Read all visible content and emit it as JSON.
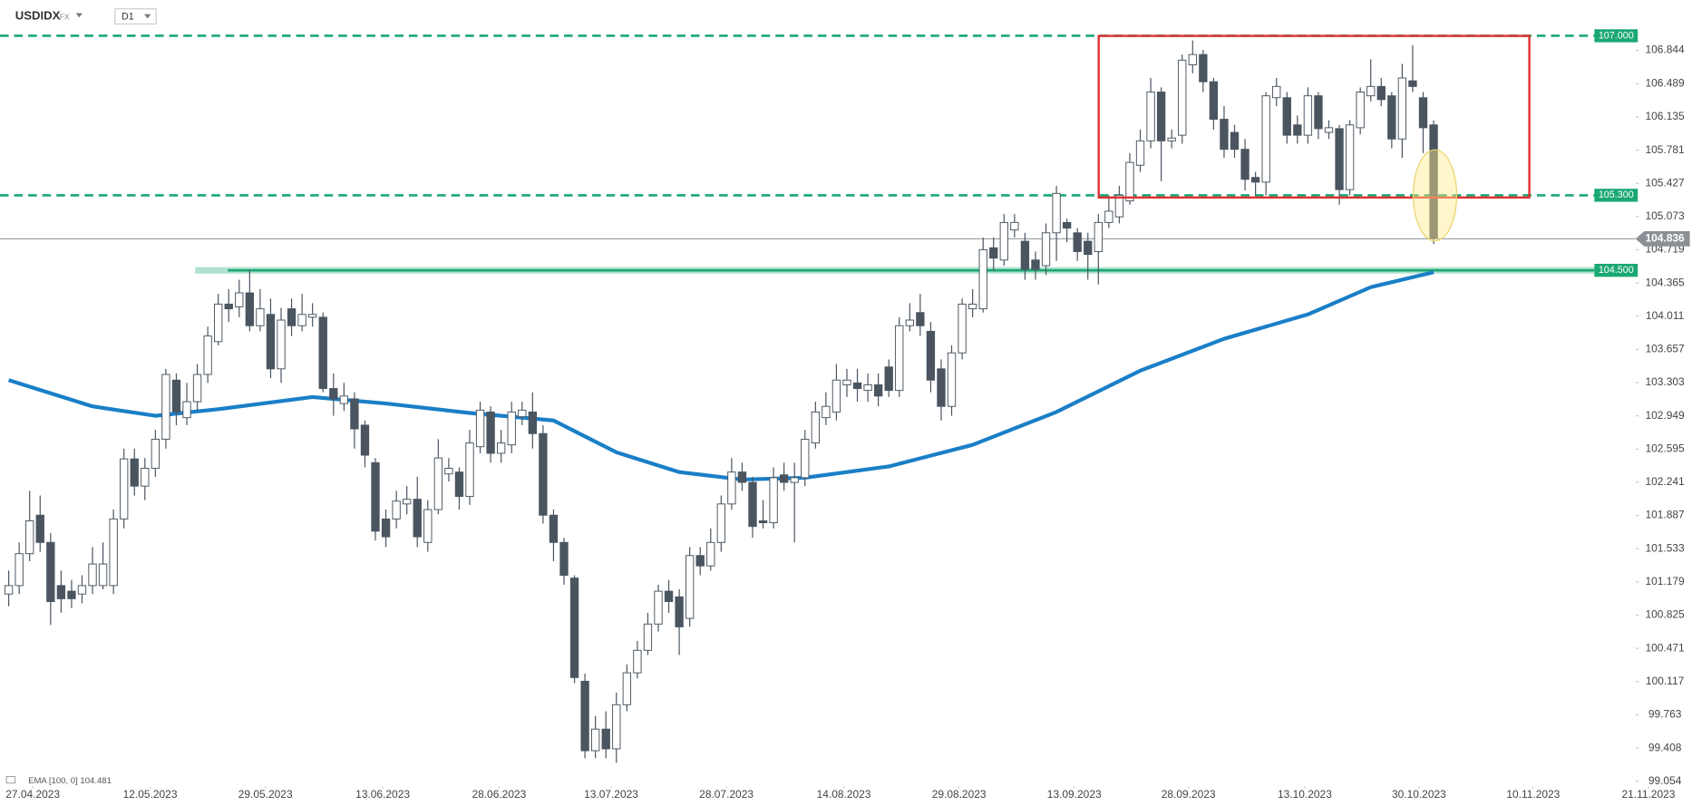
{
  "header": {
    "symbol": "USDIDX",
    "market": "FX",
    "interval": "D1"
  },
  "chart_data": {
    "type": "candlestick",
    "up_color": "#ffffff",
    "down_color": "#4a5560",
    "wick_color": "#4a5560",
    "open": [
      101.05,
      101.14,
      101.48,
      101.89,
      101.6,
      101.14,
      101.08,
      101.05,
      101.14,
      101.14,
      101.14,
      101.85,
      102.49,
      102.2,
      102.39,
      102.7,
      103.33,
      102.93,
      103.1,
      103.39,
      103.74,
      104.14,
      104.11,
      104.26,
      103.91,
      104.03,
      103.45,
      104.09,
      103.91,
      104.0,
      104.0,
      103.24,
      103.08,
      103.13,
      102.85,
      102.45,
      101.85,
      101.85,
      102.01,
      102.06,
      101.6,
      101.95,
      102.33,
      102.35,
      102.09,
      102.62,
      102.99,
      102.55,
      102.64,
      102.94,
      102.99,
      102.76,
      101.89,
      101.6,
      101.22,
      100.12,
      99.38,
      99.61,
      99.4,
      99.87,
      100.21,
      100.45,
      100.73,
      101.08,
      101.02,
      100.79,
      101.46,
      101.35,
      101.6,
      102.01,
      102.35,
      102.24,
      101.83,
      101.81,
      102.32,
      102.24,
      102.29,
      102.66,
      102.93,
      102.99,
      103.28,
      103.3,
      103.22,
      103.28,
      103.47,
      103.22,
      103.91,
      104.05,
      103.85,
      103.45,
      103.05,
      103.62,
      104.09,
      104.09,
      104.74,
      104.61,
      104.93,
      104.81,
      104.61,
      104.55,
      104.9,
      105.01,
      104.9,
      104.81,
      104.7,
      105.01,
      105.07,
      105.24,
      105.62,
      105.88,
      106.4,
      105.88,
      105.94,
      106.69,
      106.8,
      106.51,
      106.11,
      105.97,
      105.79,
      105.49,
      105.44,
      106.34,
      106.34,
      106.05,
      105.94,
      106.36,
      105.97,
      106.01,
      105.36,
      106.02,
      106.36,
      106.46,
      106.36,
      105.9,
      106.52,
      106.34,
      106.05
    ],
    "high": [
      101.3,
      101.6,
      102.15,
      102.1,
      101.7,
      101.3,
      101.2,
      101.25,
      101.55,
      101.6,
      101.95,
      102.6,
      102.6,
      102.5,
      102.8,
      103.45,
      103.4,
      103.3,
      103.5,
      103.9,
      104.25,
      104.3,
      104.4,
      104.5,
      104.3,
      104.2,
      104.1,
      104.2,
      104.25,
      104.15,
      104.05,
      103.4,
      103.3,
      103.2,
      102.9,
      102.5,
      101.95,
      102.15,
      102.2,
      102.3,
      102.05,
      102.7,
      102.5,
      102.4,
      102.8,
      103.1,
      103.05,
      102.8,
      103.1,
      103.1,
      103.2,
      102.85,
      101.95,
      101.65,
      101.25,
      100.2,
      99.75,
      99.8,
      100.0,
      100.3,
      100.55,
      100.85,
      101.15,
      101.2,
      101.1,
      101.55,
      101.55,
      101.75,
      102.1,
      102.5,
      102.45,
      102.3,
      102.05,
      102.4,
      102.45,
      102.45,
      102.8,
      103.1,
      103.2,
      103.5,
      103.45,
      103.45,
      103.4,
      103.4,
      103.55,
      104.0,
      104.15,
      104.25,
      103.95,
      103.55,
      103.7,
      104.2,
      104.3,
      104.85,
      104.85,
      105.1,
      105.1,
      104.9,
      104.7,
      105.0,
      105.4,
      105.05,
      104.95,
      104.9,
      105.1,
      105.3,
      105.4,
      105.75,
      106.0,
      106.55,
      106.45,
      106.0,
      106.8,
      106.95,
      106.85,
      106.55,
      106.25,
      106.05,
      105.9,
      105.55,
      106.4,
      106.55,
      106.4,
      106.15,
      106.45,
      106.4,
      106.1,
      106.05,
      106.1,
      106.45,
      106.75,
      106.55,
      106.4,
      106.7,
      106.9,
      106.4,
      106.1
    ],
    "low": [
      100.92,
      101.05,
      101.4,
      101.5,
      100.72,
      100.85,
      100.9,
      100.95,
      101.05,
      101.1,
      101.05,
      101.75,
      102.1,
      102.05,
      102.3,
      102.6,
      102.85,
      102.85,
      103.0,
      103.3,
      103.7,
      103.95,
      104.0,
      103.85,
      103.85,
      103.35,
      103.3,
      103.8,
      103.85,
      103.9,
      103.2,
      102.95,
      103.0,
      102.6,
      102.4,
      101.62,
      101.55,
      101.75,
      101.9,
      101.55,
      101.5,
      101.9,
      102.25,
      101.95,
      102.0,
      102.55,
      102.45,
      102.45,
      102.55,
      102.85,
      102.6,
      101.8,
      101.4,
      101.15,
      100.1,
      99.3,
      99.3,
      99.3,
      99.25,
      99.8,
      100.15,
      100.4,
      100.65,
      100.85,
      100.4,
      100.7,
      101.25,
      101.3,
      101.5,
      101.95,
      102.15,
      101.65,
      101.75,
      101.75,
      102.15,
      101.6,
      102.2,
      102.6,
      102.85,
      102.9,
      103.15,
      103.1,
      103.1,
      103.05,
      103.15,
      103.15,
      103.85,
      103.8,
      103.2,
      102.9,
      102.95,
      103.55,
      104.0,
      104.05,
      104.5,
      104.55,
      104.85,
      104.4,
      104.4,
      104.45,
      104.6,
      104.8,
      104.6,
      104.4,
      104.35,
      104.95,
      105.0,
      105.2,
      105.55,
      105.8,
      105.45,
      105.8,
      105.85,
      106.6,
      106.4,
      106.0,
      105.7,
      105.7,
      105.35,
      105.3,
      105.3,
      106.25,
      105.85,
      105.85,
      105.85,
      105.9,
      105.9,
      105.2,
      105.3,
      105.95,
      106.3,
      106.25,
      105.8,
      105.7,
      106.4,
      105.75,
      104.78
    ],
    "close": [
      101.14,
      101.48,
      101.83,
      101.6,
      100.97,
      101.0,
      101.0,
      101.14,
      101.37,
      101.37,
      101.85,
      102.49,
      102.2,
      102.39,
      102.7,
      103.39,
      102.99,
      103.1,
      103.39,
      103.8,
      104.14,
      104.09,
      104.26,
      103.91,
      104.09,
      103.45,
      103.97,
      103.91,
      104.03,
      104.03,
      103.24,
      103.13,
      103.16,
      102.81,
      102.53,
      101.72,
      101.66,
      102.04,
      102.06,
      101.66,
      101.95,
      102.5,
      102.39,
      102.09,
      102.66,
      103.01,
      102.55,
      102.66,
      102.99,
      103.01,
      102.76,
      101.89,
      101.6,
      101.25,
      100.16,
      99.38,
      99.61,
      99.4,
      99.87,
      100.21,
      100.45,
      100.73,
      101.08,
      100.97,
      100.7,
      101.46,
      101.35,
      101.6,
      102.01,
      102.35,
      102.24,
      101.77,
      101.81,
      102.29,
      102.24,
      102.29,
      102.7,
      102.99,
      103.05,
      103.33,
      103.33,
      103.24,
      103.28,
      103.16,
      103.22,
      103.91,
      103.97,
      103.91,
      103.33,
      103.05,
      103.62,
      104.14,
      104.14,
      104.72,
      104.63,
      105.01,
      105.01,
      104.51,
      104.51,
      104.9,
      105.32,
      104.95,
      104.7,
      104.67,
      105.01,
      105.13,
      105.3,
      105.65,
      105.88,
      106.4,
      105.88,
      105.91,
      106.74,
      106.8,
      106.51,
      106.11,
      105.79,
      105.79,
      105.47,
      105.44,
      106.36,
      106.46,
      105.94,
      105.94,
      106.36,
      106.01,
      106.02,
      105.36,
      106.05,
      106.4,
      106.46,
      106.32,
      105.9,
      106.55,
      106.46,
      106.02,
      104.84
    ],
    "ema": {
      "name": "EMA [100, 0] 104.481",
      "color": "#1a7fc7",
      "x": [
        0,
        8,
        14,
        20,
        29,
        36,
        44,
        52,
        58,
        64,
        70,
        76,
        84,
        92,
        100,
        108,
        116,
        124,
        130,
        136
      ],
      "values": [
        103.33,
        103.05,
        102.95,
        103.02,
        103.15,
        103.08,
        102.98,
        102.9,
        102.56,
        102.35,
        102.27,
        102.29,
        102.41,
        102.64,
        102.99,
        103.43,
        103.77,
        104.03,
        104.32,
        104.48
      ]
    },
    "levels": [
      {
        "value": 107,
        "label": "107.000",
        "style": "dashed",
        "color": "#1aa873"
      },
      {
        "value": 105.3,
        "label": "105.300",
        "style": "dashed",
        "color": "#1aa873"
      },
      {
        "value": 104.5,
        "label": "104.500",
        "style": "solid",
        "color": "#1aa873"
      }
    ],
    "last_price": {
      "value": 104.836,
      "label": "104.836",
      "color": "#8a9096"
    },
    "xlim": [
      -0.83,
      160.66
    ],
    "xticks": [
      {
        "value": 2.3,
        "label": "27.04.2023"
      },
      {
        "value": 13.5,
        "label": "12.05.2023"
      },
      {
        "value": 24.5,
        "label": "29.05.2023"
      },
      {
        "value": 35.7,
        "label": "13.06.2023"
      },
      {
        "value": 46.8,
        "label": "28.06.2023"
      },
      {
        "value": 57.5,
        "label": "13.07.2023"
      },
      {
        "value": 68.5,
        "label": "28.07.2023"
      },
      {
        "value": 79.7,
        "label": "14.08.2023"
      },
      {
        "value": 90.7,
        "label": "29.08.2023"
      },
      {
        "value": 101.7,
        "label": "13.09.2023"
      },
      {
        "value": 112.6,
        "label": "28.09.2023"
      },
      {
        "value": 123.7,
        "label": "13.10.2023"
      },
      {
        "value": 134.6,
        "label": "30.10.2023"
      },
      {
        "value": 145.5,
        "label": "10.11.2023"
      },
      {
        "value": 156.5,
        "label": "21.11.2023"
      }
    ],
    "ylim": [
      99.0,
      107.38
    ],
    "yticks": [
      99.054,
      99.408,
      99.763,
      100.117,
      100.471,
      100.825,
      101.179,
      101.533,
      101.887,
      102.241,
      102.595,
      102.949,
      103.303,
      103.657,
      104.011,
      104.365,
      104.719,
      105.073,
      105.427,
      105.781,
      106.135,
      106.489,
      106.844
    ]
  }
}
